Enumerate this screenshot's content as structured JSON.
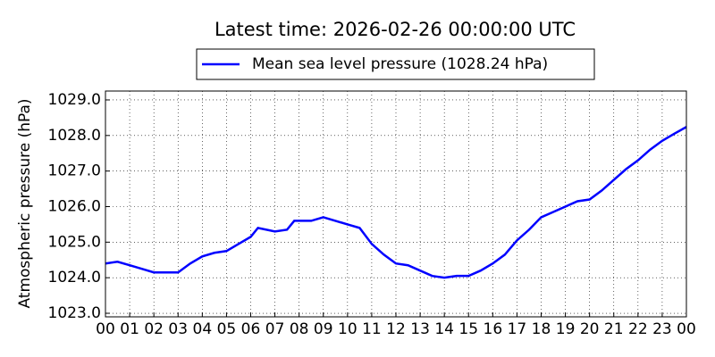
{
  "chart_data": {
    "type": "line",
    "title": "Latest time: 2026-02-26 00:00:00 UTC",
    "y_label": "Atmospheric pressure (hPa)",
    "x": [
      0,
      0.5,
      1,
      1.5,
      2,
      2.5,
      3,
      3.5,
      4,
      4.5,
      5,
      5.5,
      6,
      6.3,
      7,
      7.5,
      7.8,
      8.5,
      9,
      9.5,
      10,
      10.5,
      11,
      11.5,
      12,
      12.5,
      13,
      13.5,
      14,
      14.5,
      15,
      15.5,
      16,
      16.5,
      17,
      17.5,
      18,
      18.5,
      19,
      19.5,
      20,
      20.5,
      21,
      21.5,
      22,
      22.5,
      23,
      23.5,
      24
    ],
    "series": [
      {
        "name": "Mean sea level pressure (1028.24 hPa)",
        "color": "#0000ff",
        "values": [
          1024.4,
          1024.45,
          1024.35,
          1024.25,
          1024.15,
          1024.15,
          1024.15,
          1024.4,
          1024.6,
          1024.7,
          1024.75,
          1024.95,
          1025.15,
          1025.4,
          1025.3,
          1025.35,
          1025.6,
          1025.6,
          1025.7,
          1025.6,
          1025.5,
          1025.4,
          1024.95,
          1024.65,
          1024.4,
          1024.35,
          1024.2,
          1024.05,
          1024.0,
          1024.05,
          1024.05,
          1024.2,
          1024.4,
          1024.65,
          1025.05,
          1025.35,
          1025.7,
          1025.85,
          1026.0,
          1026.15,
          1026.2,
          1026.45,
          1026.75,
          1027.05,
          1027.3,
          1027.6,
          1027.85,
          1028.05,
          1028.24
        ]
      }
    ],
    "xlim": [
      0,
      24
    ],
    "xticks": [
      {
        "value": 0,
        "label": "00"
      },
      {
        "value": 1,
        "label": "01"
      },
      {
        "value": 2,
        "label": "02"
      },
      {
        "value": 3,
        "label": "03"
      },
      {
        "value": 4,
        "label": "04"
      },
      {
        "value": 5,
        "label": "05"
      },
      {
        "value": 6,
        "label": "06"
      },
      {
        "value": 7,
        "label": "07"
      },
      {
        "value": 8,
        "label": "08"
      },
      {
        "value": 9,
        "label": "09"
      },
      {
        "value": 10,
        "label": "10"
      },
      {
        "value": 11,
        "label": "11"
      },
      {
        "value": 12,
        "label": "12"
      },
      {
        "value": 13,
        "label": "13"
      },
      {
        "value": 14,
        "label": "14"
      },
      {
        "value": 15,
        "label": "15"
      },
      {
        "value": 16,
        "label": "16"
      },
      {
        "value": 17,
        "label": "17"
      },
      {
        "value": 18,
        "label": "18"
      },
      {
        "value": 19,
        "label": "19"
      },
      {
        "value": 20,
        "label": "20"
      },
      {
        "value": 21,
        "label": "21"
      },
      {
        "value": 22,
        "label": "22"
      },
      {
        "value": 23,
        "label": "23"
      },
      {
        "value": 24,
        "label": "00"
      }
    ],
    "ylim": [
      1022.9,
      1029.25
    ],
    "yticks": [
      {
        "value": 1023,
        "label": "1023.0"
      },
      {
        "value": 1024,
        "label": "1024.0"
      },
      {
        "value": 1025,
        "label": "1025.0"
      },
      {
        "value": 1026,
        "label": "1026.0"
      },
      {
        "value": 1027,
        "label": "1027.0"
      },
      {
        "value": 1028,
        "label": "1028.0"
      },
      {
        "value": 1029,
        "label": "1029.0"
      }
    ],
    "grid": true
  }
}
